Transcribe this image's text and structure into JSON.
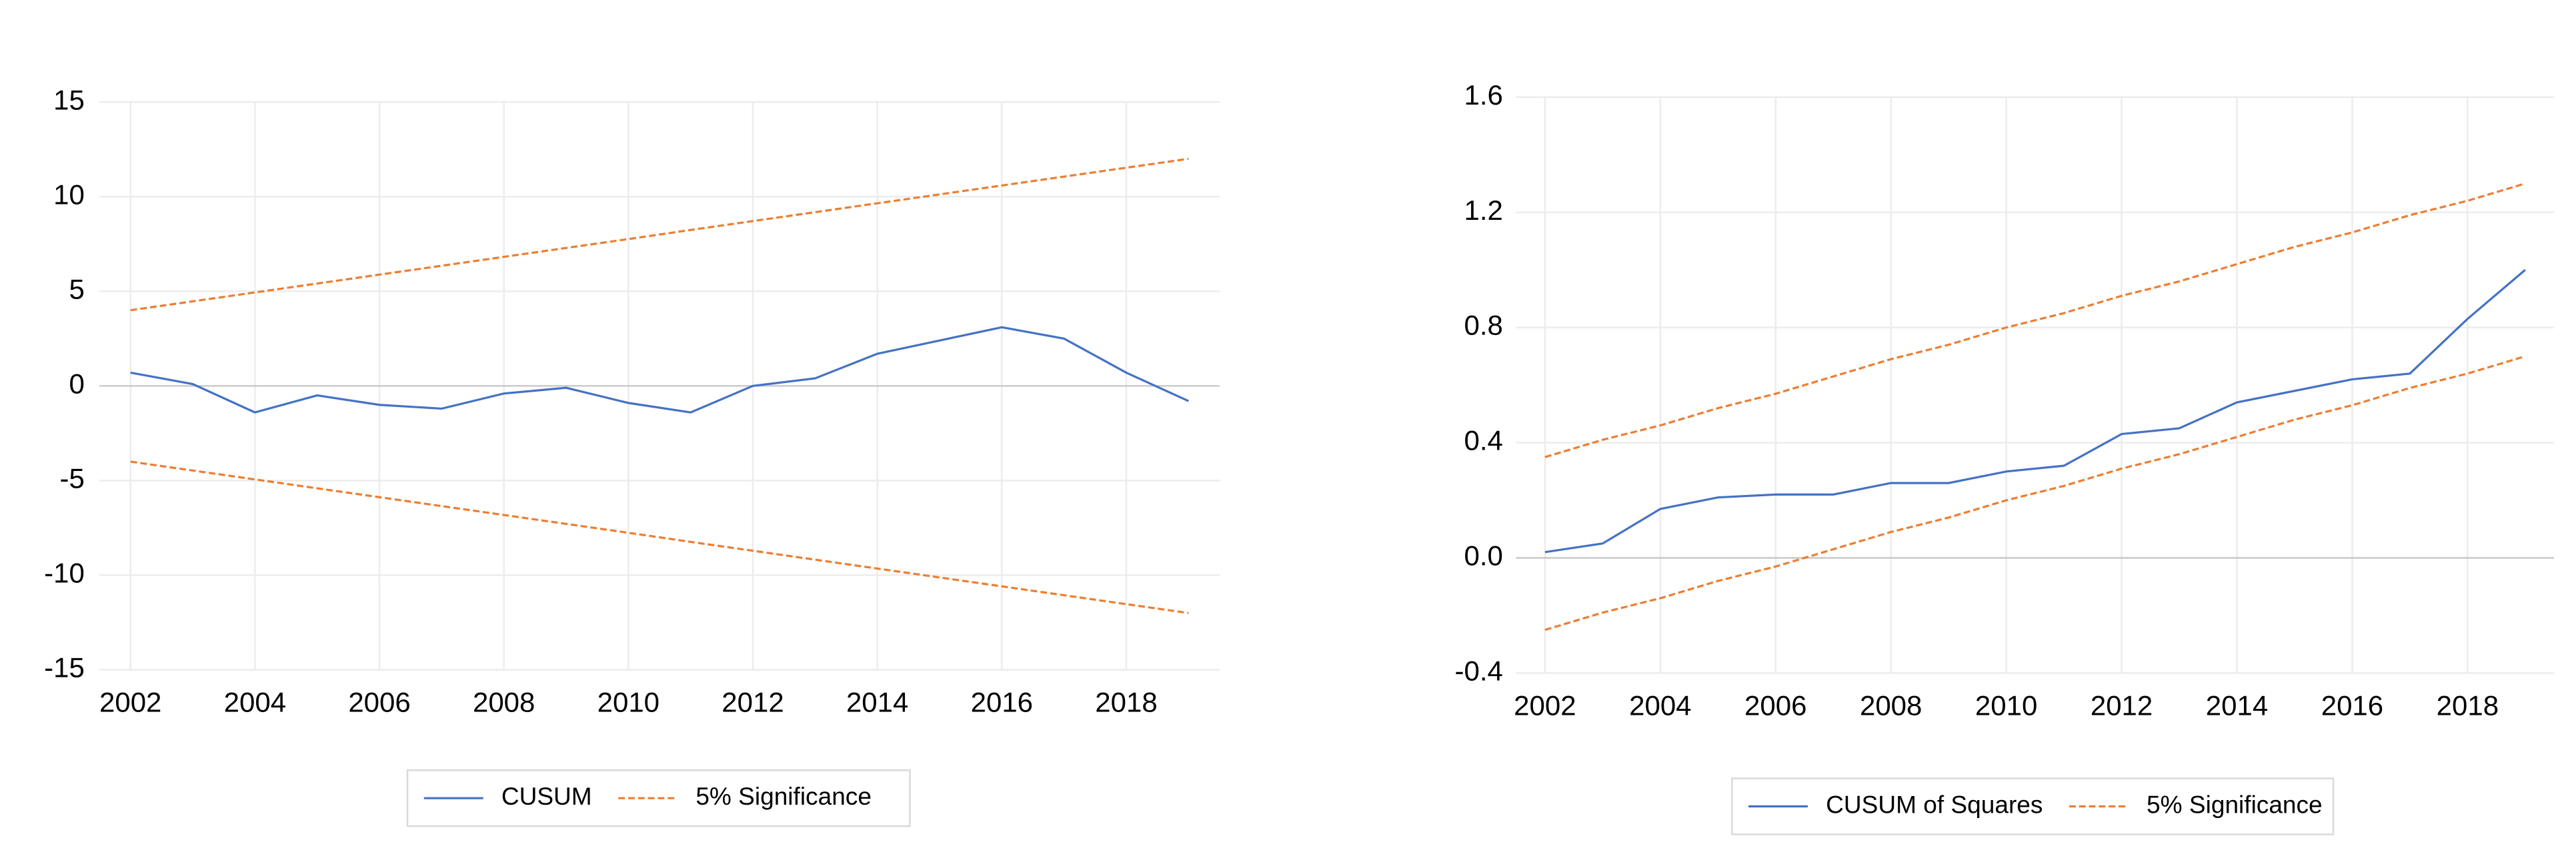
{
  "chart_data": [
    {
      "type": "line",
      "x": [
        2002,
        2003,
        2004,
        2005,
        2006,
        2007,
        2008,
        2009,
        2010,
        2011,
        2012,
        2013,
        2014,
        2015,
        2016,
        2017,
        2018,
        2019
      ],
      "xlim": [
        2001.5,
        2019.5
      ],
      "xticks": [
        2002,
        2004,
        2006,
        2008,
        2010,
        2012,
        2014,
        2016,
        2018
      ],
      "ylim": [
        -15,
        15
      ],
      "yticks": [
        -15,
        -10,
        -5,
        0,
        5,
        10,
        15
      ],
      "grid": true,
      "series": [
        {
          "name": "CUSUM",
          "color": "#4472c4",
          "dash": false,
          "values": [
            0.7,
            0.1,
            -1.4,
            -0.5,
            -1.0,
            -1.2,
            -0.4,
            -0.1,
            -0.9,
            -1.4,
            0.0,
            0.4,
            1.7,
            2.4,
            3.1,
            2.5,
            0.7,
            -0.8
          ]
        },
        {
          "name": "5% Significance",
          "color": "#ed7d31",
          "dash": true,
          "values": [
            4,
            4.47,
            4.94,
            5.41,
            5.88,
            6.35,
            6.82,
            7.29,
            7.76,
            8.24,
            8.71,
            9.18,
            9.65,
            10.12,
            10.59,
            11.06,
            11.53,
            12
          ],
          "lower": [
            -4,
            -4.47,
            -4.94,
            -5.41,
            -5.88,
            -6.35,
            -6.82,
            -7.29,
            -7.76,
            -8.24,
            -8.71,
            -9.18,
            -9.65,
            -10.12,
            -10.59,
            -11.06,
            -11.53,
            -12
          ]
        }
      ]
    },
    {
      "type": "line",
      "x": [
        2002,
        2003,
        2004,
        2005,
        2006,
        2007,
        2008,
        2009,
        2010,
        2011,
        2012,
        2013,
        2014,
        2015,
        2016,
        2017,
        2018,
        2019
      ],
      "xlim": [
        2001.5,
        2019.5
      ],
      "xticks": [
        2002,
        2004,
        2006,
        2008,
        2010,
        2012,
        2014,
        2016,
        2018
      ],
      "ylim": [
        -0.4,
        1.6
      ],
      "yticks": [
        -0.4,
        {
          "value": 0,
          "label": "0.0"
        },
        0.4,
        0.8,
        1.2,
        1.6
      ],
      "grid": true,
      "series": [
        {
          "name": "CUSUM of Squares",
          "color": "#4472c4",
          "dash": false,
          "values": [
            0.02,
            0.05,
            0.17,
            0.21,
            0.22,
            0.22,
            0.26,
            0.26,
            0.3,
            0.32,
            0.43,
            0.45,
            0.54,
            0.58,
            0.62,
            0.64,
            0.83,
            1.0
          ]
        },
        {
          "name": "5% Significance",
          "color": "#ed7d31",
          "dash": true,
          "values": [
            0.35,
            0.41,
            0.46,
            0.52,
            0.57,
            0.63,
            0.69,
            0.74,
            0.8,
            0.85,
            0.91,
            0.96,
            1.02,
            1.08,
            1.13,
            1.19,
            1.24,
            1.3
          ],
          "lower": [
            -0.25,
            -0.19,
            -0.14,
            -0.08,
            -0.03,
            0.03,
            0.09,
            0.14,
            0.2,
            0.25,
            0.31,
            0.36,
            0.42,
            0.48,
            0.53,
            0.59,
            0.64,
            0.7
          ]
        }
      ]
    }
  ]
}
